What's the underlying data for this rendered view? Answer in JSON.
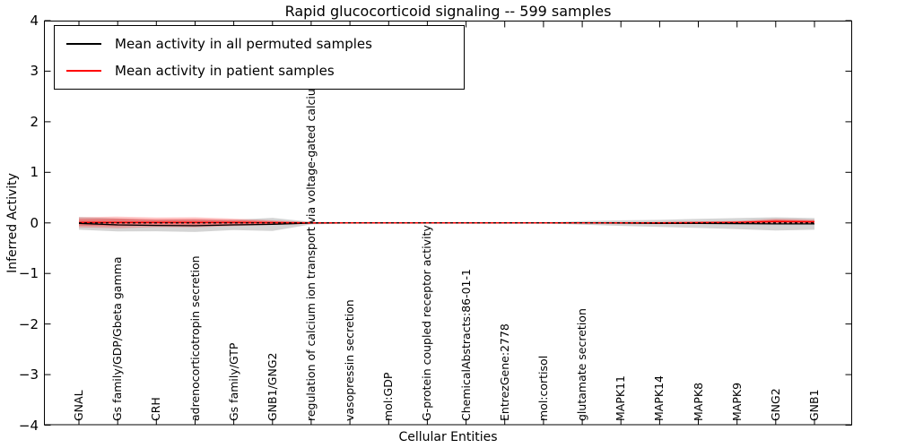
{
  "title": "Rapid glucocorticoid signaling -- 599 samples",
  "axes": {
    "x_label": "Cellular Entities",
    "y_label": "Inferred Activity",
    "y_tick_labels": [
      "4",
      "3",
      "2",
      "1",
      "0",
      "−1",
      "−2",
      "−3",
      "−4"
    ],
    "y_tick_values": [
      4,
      3,
      2,
      1,
      0,
      -1,
      -2,
      -3,
      -4
    ]
  },
  "legend": {
    "entries": [
      {
        "label": "Mean activity in all permuted samples",
        "color": "#000000"
      },
      {
        "label": "Mean activity in patient samples",
        "color": "#ff0000"
      }
    ]
  },
  "colors": {
    "background": "#ffffff",
    "frame": "#000000",
    "permuted_line": "#000000",
    "patient_line": "#ff0000",
    "permuted_band": "rgba(120,120,120,0.32)",
    "patient_band": "rgba(255,0,0,0.22)",
    "patient_band_inner": "rgba(255,0,0,0.25)"
  },
  "chart_data": {
    "type": "line",
    "title": "Rapid glucocorticoid signaling -- 599 samples",
    "xlabel": "Cellular Entities",
    "ylabel": "Inferred Activity",
    "ylim": [
      -4,
      4
    ],
    "grid": false,
    "legend_position": "upper left",
    "zero_line": {
      "style": "dashed",
      "color": "#000000",
      "y": 0
    },
    "categories": [
      "GNAL",
      "Gs family/GDP/Gbeta gamma",
      "CRH",
      "adrenocorticotropin secretion",
      "Gs family/GTP",
      "GNB1/GNG2",
      "regulation of calcium ion transport via voltage-gated calcium channel",
      "vasopressin secretion",
      "mol:GDP",
      "G-protein coupled receptor activity",
      "ChemicalAbstracts:86-01-1",
      "EntrezGene:2778",
      "mol:cortisol",
      "glutamate secretion",
      "MAPK11",
      "MAPK14",
      "MAPK8",
      "MAPK9",
      "GNG2",
      "GNB1"
    ],
    "series": [
      {
        "name": "Mean activity in all permuted samples",
        "color": "#000000",
        "values": [
          -0.01,
          -0.04,
          -0.05,
          -0.055,
          -0.04,
          -0.03,
          -0.005,
          0,
          0,
          0,
          0,
          0,
          0,
          0,
          -0.005,
          -0.01,
          -0.01,
          -0.015,
          -0.02,
          -0.02
        ],
        "band_halfwidth": [
          0.125,
          0.13,
          0.115,
          0.125,
          0.1,
          0.13,
          0.025,
          0.012,
          0.012,
          0.012,
          0.012,
          0.012,
          0.012,
          0.035,
          0.055,
          0.07,
          0.09,
          0.11,
          0.13,
          0.115
        ]
      },
      {
        "name": "Mean activity in patient samples",
        "color": "#ff0000",
        "values": [
          0.01,
          0.01,
          0.01,
          0.01,
          0.01,
          0.005,
          0,
          0,
          0,
          0,
          0,
          0,
          0,
          0,
          0,
          0,
          0.005,
          0.01,
          0.03,
          0.02
        ],
        "band_halfwidth": [
          0.1,
          0.115,
          0.095,
          0.1,
          0.075,
          0.045,
          0.015,
          0.01,
          0.01,
          0.01,
          0.01,
          0.01,
          0.01,
          0.012,
          0.015,
          0.02,
          0.025,
          0.03,
          0.055,
          0.045
        ],
        "band_inner_halfwidth": [
          0.065,
          0.075,
          0.06,
          0.065,
          0.048,
          0.028,
          0.009,
          0.006,
          0.006,
          0.006,
          0.006,
          0.006,
          0.006,
          0.007,
          0.009,
          0.012,
          0.015,
          0.018,
          0.033,
          0.027
        ]
      }
    ]
  }
}
